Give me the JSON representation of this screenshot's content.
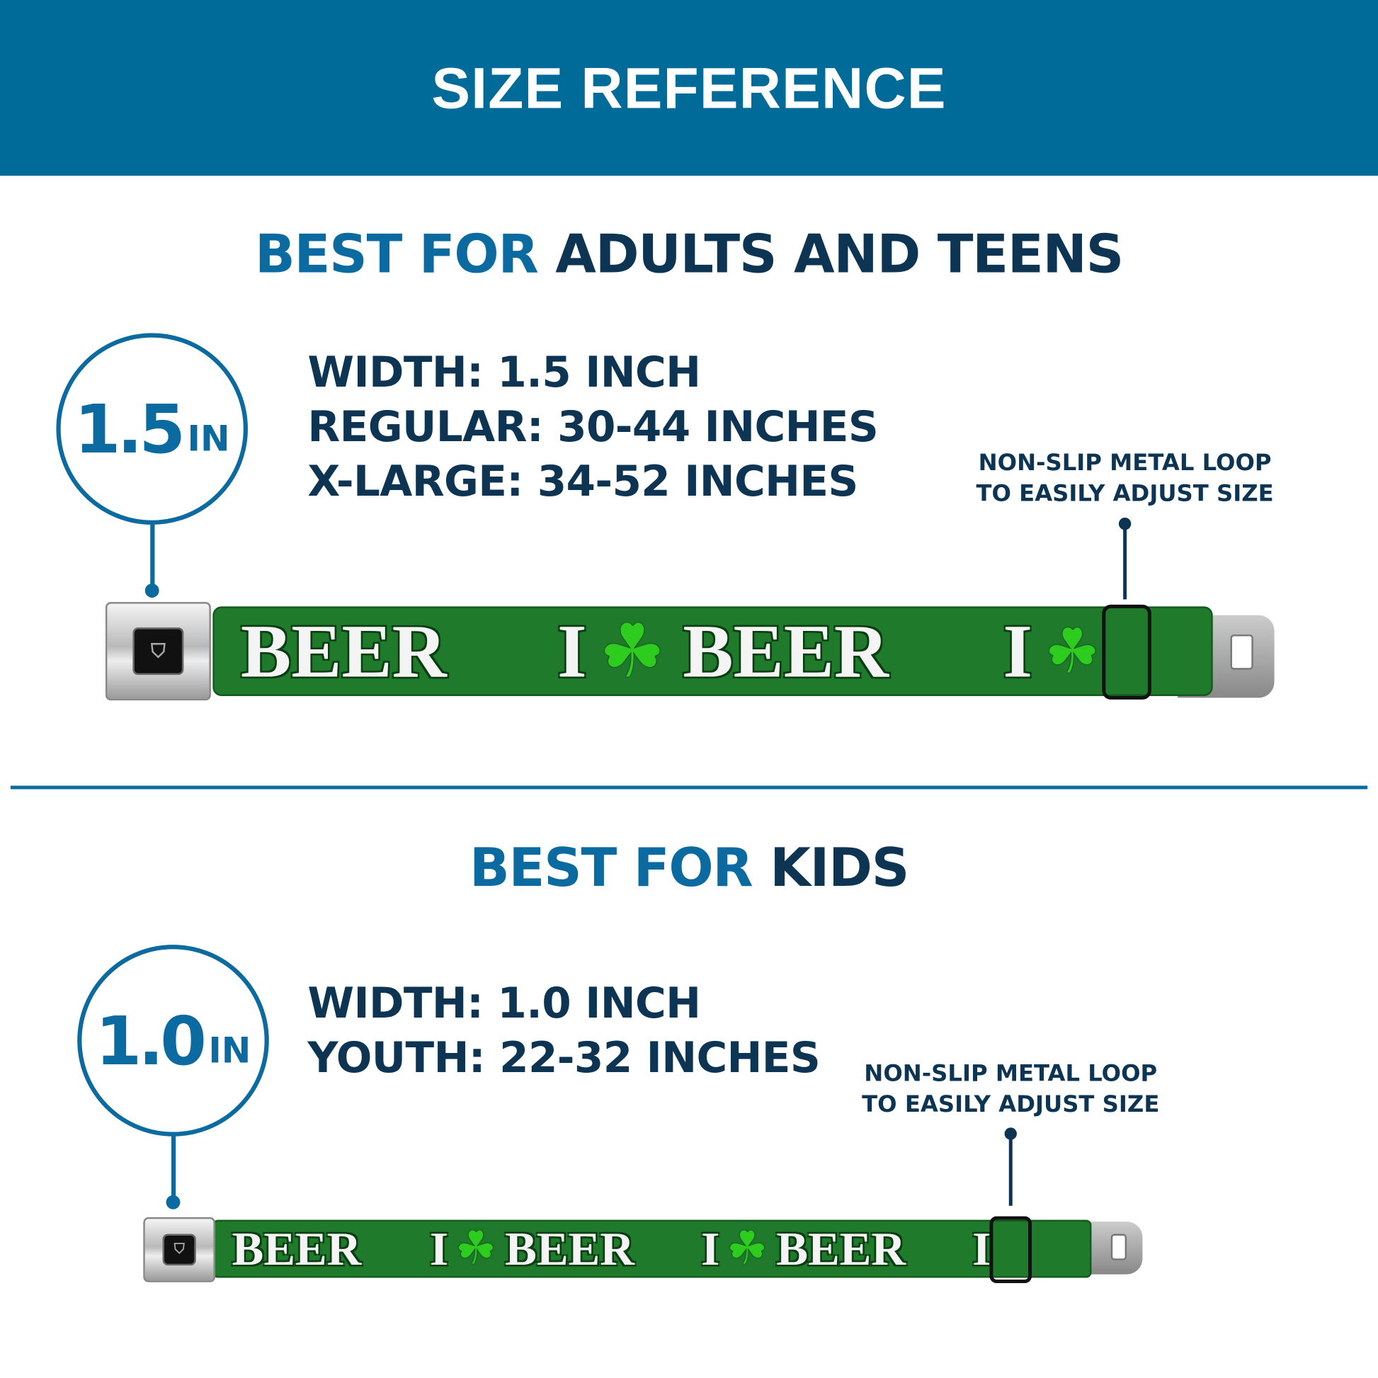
{
  "header": {
    "title": "SIZE REFERENCE"
  },
  "colors": {
    "header_bg": "#006a98",
    "accent_blue": "#0b6aa0",
    "navy": "#0d3553",
    "belt_green": "#1f7a2c",
    "clover_green": "#2ecc1e"
  },
  "adults": {
    "title_prefix": "BEST FOR",
    "title_main": "ADULTS AND TEENS",
    "badge_value": "1.5",
    "badge_unit": "IN",
    "specs": [
      "WIDTH: 1.5 INCH",
      "REGULAR: 30-44 INCHES",
      "X-LARGE: 34-52 INCHES"
    ],
    "callout": [
      "NON-SLIP METAL LOOP",
      "TO EASILY ADJUST SIZE"
    ]
  },
  "kids": {
    "title_prefix": "BEST FOR",
    "title_main": "KIDS",
    "badge_value": "1.0",
    "badge_unit": "IN",
    "specs": [
      "WIDTH: 1.0 INCH",
      "YOUTH: 22-32 INCHES"
    ],
    "callout": [
      "NON-SLIP METAL LOOP",
      "TO EASILY ADJUST SIZE"
    ]
  },
  "belt": {
    "word": "BEER",
    "letter": "I",
    "icon": "shamrock-icon",
    "buckle_logo": "BD"
  }
}
